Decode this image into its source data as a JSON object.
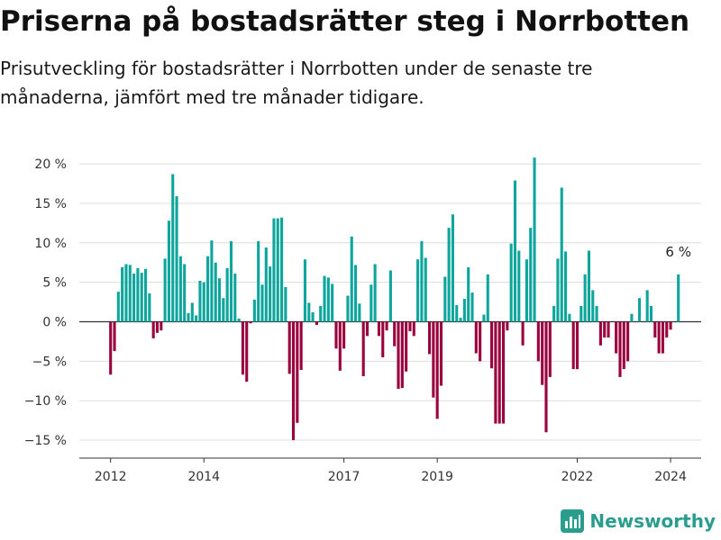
{
  "title": "Priserna på bostadsrätter steg i Norrbotten",
  "subtitle": "Prisutveckling för bostadsrätter i Norrbotten under de senaste tre månaderna, jämfört med tre månader tidigare.",
  "brand": "Newsworthy",
  "colors": {
    "positive": "#0ea59c",
    "negative": "#99003d",
    "grid": "#dddddd",
    "zero": "#333333",
    "brand": "#2a9d8f"
  },
  "chart_data": {
    "type": "bar",
    "title": "Priserna på bostadsrätter steg i Norrbotten",
    "xlabel": "",
    "ylabel": "",
    "ylim": [
      -17,
      21
    ],
    "y_ticks": [
      20,
      15,
      10,
      5,
      0,
      -5,
      -10,
      -15
    ],
    "y_tick_labels": [
      "20 %",
      "15 %",
      "10 %",
      "5 %",
      "0 %",
      "−5 %",
      "−10 %",
      "−15 %"
    ],
    "x_ticks": [
      {
        "label": "2012",
        "index": 0
      },
      {
        "label": "2014",
        "index": 24
      },
      {
        "label": "2017",
        "index": 60
      },
      {
        "label": "2019",
        "index": 84
      },
      {
        "label": "2022",
        "index": 120
      },
      {
        "label": "2024",
        "index": 144
      }
    ],
    "start": "2012-01",
    "period": "monthly",
    "values": [
      -6.7,
      -3.7,
      3.8,
      6.9,
      7.3,
      7.2,
      6.1,
      6.8,
      6.2,
      6.7,
      3.6,
      -2.1,
      -1.4,
      -1.1,
      8.0,
      12.8,
      18.7,
      15.9,
      8.3,
      7.3,
      1.1,
      2.4,
      0.8,
      5.2,
      5.0,
      8.3,
      10.3,
      7.5,
      5.5,
      3.0,
      6.8,
      10.2,
      6.1,
      0.4,
      -6.7,
      -7.6,
      -0.2,
      2.8,
      10.2,
      4.7,
      9.4,
      7.0,
      13.1,
      13.1,
      13.2,
      4.4,
      -6.6,
      -15.0,
      -12.8,
      -6.1,
      7.9,
      2.4,
      1.2,
      -0.4,
      2.0,
      5.8,
      5.6,
      4.8,
      -3.4,
      -6.2,
      -3.4,
      3.3,
      10.8,
      7.2,
      2.3,
      -6.9,
      -1.8,
      4.7,
      7.3,
      -1.8,
      -4.5,
      -1.1,
      6.5,
      -3.1,
      -8.5,
      -8.4,
      -6.3,
      -1.2,
      -1.8,
      7.9,
      10.2,
      8.1,
      -4.1,
      -9.6,
      -12.3,
      -8.1,
      5.7,
      11.9,
      13.6,
      2.1,
      0.5,
      2.9,
      6.9,
      3.7,
      -4.0,
      -5.0,
      0.9,
      6.0,
      -5.9,
      -12.9,
      -12.9,
      -12.9,
      -1.1,
      9.9,
      17.9,
      9.0,
      -3.0,
      7.9,
      11.9,
      20.8,
      -5.0,
      -8.0,
      -14.0,
      -7.0,
      2.0,
      8.0,
      17.0,
      8.9,
      1.0,
      -6.0,
      -6.0,
      2.0,
      6.0,
      9.0,
      4.0,
      2.0,
      -3.0,
      -2.0,
      -2.0,
      0.0,
      -4.0,
      -7.0,
      -6.0,
      -5.0,
      1.0,
      0.0,
      3.0,
      0.0,
      4.0,
      2.0,
      -2.0,
      -4.0,
      -4.0,
      -2.0,
      -1.0,
      0.0,
      6.0
    ],
    "annotation": {
      "label": "6 %",
      "index": 146
    }
  }
}
